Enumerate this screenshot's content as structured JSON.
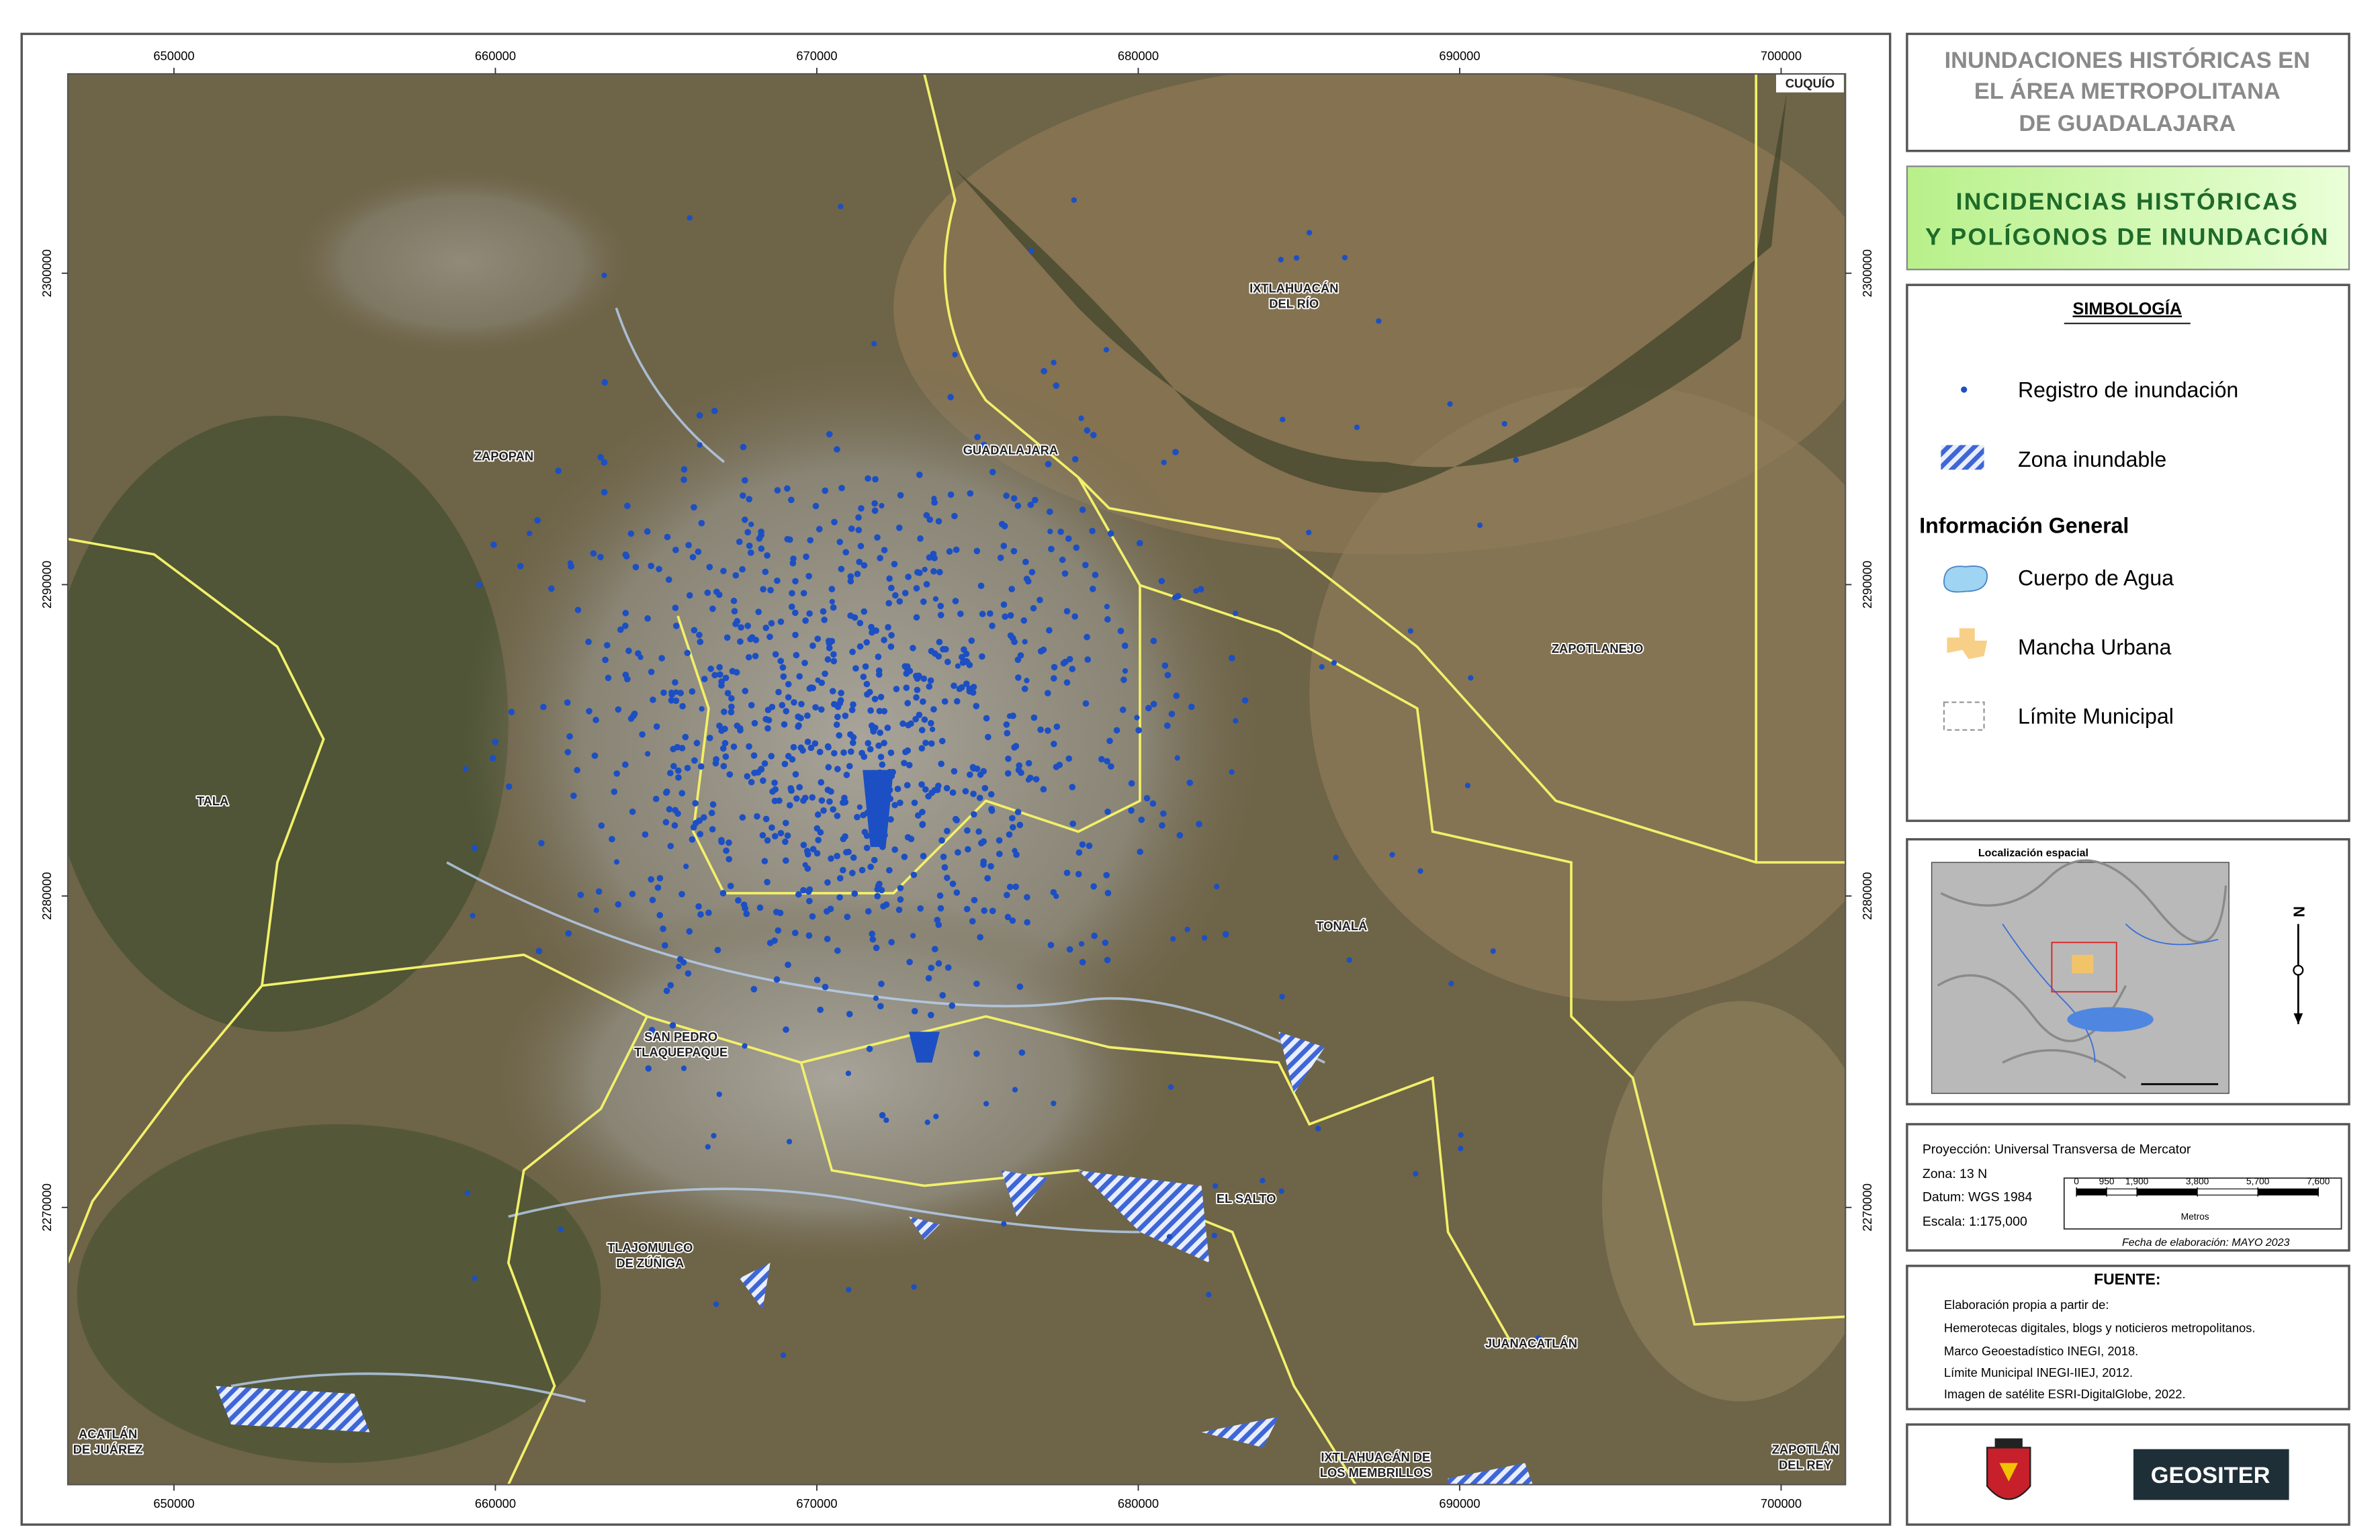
{
  "map": {
    "xlim": [
      646700,
      702000
    ],
    "ylim": [
      2261100,
      2306400
    ],
    "xticks": [
      650000,
      660000,
      670000,
      680000,
      690000,
      700000
    ],
    "yticks": [
      2270000,
      2280000,
      2290000,
      2300000
    ],
    "places": [
      {
        "lines": [
          "CUQUÍO"
        ]
      },
      {
        "lines": [
          "IXTLAHUACÁN",
          "DEL RÍO"
        ]
      },
      {
        "lines": [
          "ZAPOPAN"
        ]
      },
      {
        "lines": [
          "GUADALAJARA"
        ]
      },
      {
        "lines": [
          "ZAPOTLANEJO"
        ]
      },
      {
        "lines": [
          "TALA"
        ]
      },
      {
        "lines": [
          "TONALÁ"
        ]
      },
      {
        "lines": [
          "SAN PEDRO",
          "TLAQUEPAQUE"
        ]
      },
      {
        "lines": [
          "EL SALTO"
        ]
      },
      {
        "lines": [
          "TLAJOMULCO",
          "DE ZÚÑIGA"
        ]
      },
      {
        "lines": [
          "JUANACATLÁN"
        ]
      },
      {
        "lines": [
          "ACATLÁN",
          "DE JUÁREZ"
        ]
      },
      {
        "lines": [
          "IXTLAHUACÁN DE",
          "LOS MEMBRILLOS"
        ]
      },
      {
        "lines": [
          "ZAPOTLÁN",
          "DEL REY"
        ]
      }
    ]
  },
  "header": {
    "title_lines": [
      "INUNDACIONES HISTÓRICAS EN",
      "EL ÁREA METROPOLITANA",
      "DE GUADALAJARA"
    ],
    "subtitle_lines": [
      "INCIDENCIAS HISTÓRICAS",
      "Y POLÍGONOS DE INUNDACIÓN"
    ]
  },
  "legend": {
    "title": "SIMBOLOGÍA",
    "items": [
      "Registro de inundación",
      "Zona inundable"
    ],
    "section": "Información General",
    "general_items": [
      "Cuerpo de Agua",
      "Mancha Urbana",
      "Límite Municipal"
    ]
  },
  "inset": {
    "title": "Localización espacial",
    "north": "N"
  },
  "info": {
    "lines": [
      "Proyección: Universal Transversa de Mercator",
      "Zona: 13 N",
      "Datum: WGS 1984",
      "Escala: 1:175,000"
    ],
    "scale_bar": {
      "ticks": [
        0,
        950,
        {
          "value": 1900,
          "label": "1,900"
        },
        {
          "value": 3800,
          "label": "3,800"
        },
        {
          "value": 5700,
          "label": "5,700"
        },
        {
          "value": 7600,
          "label": "7,600"
        }
      ],
      "unit": "Metros"
    },
    "date": "Fecha de elaboración: MAYO 2023"
  },
  "source": {
    "title": "FUENTE:",
    "lines": [
      "Elaboración propia a partir de:",
      "Hemerotecas digitales, blogs y noticieros metropolitanos.",
      "Marco Geoestadístico INEGI, 2018.",
      "Límite Municipal INEGI-IIEJ, 2012.",
      "Imagen de satélite ESRI-DigitalGlobe, 2022."
    ]
  },
  "logos": {
    "geositer": "GEOSITER"
  }
}
